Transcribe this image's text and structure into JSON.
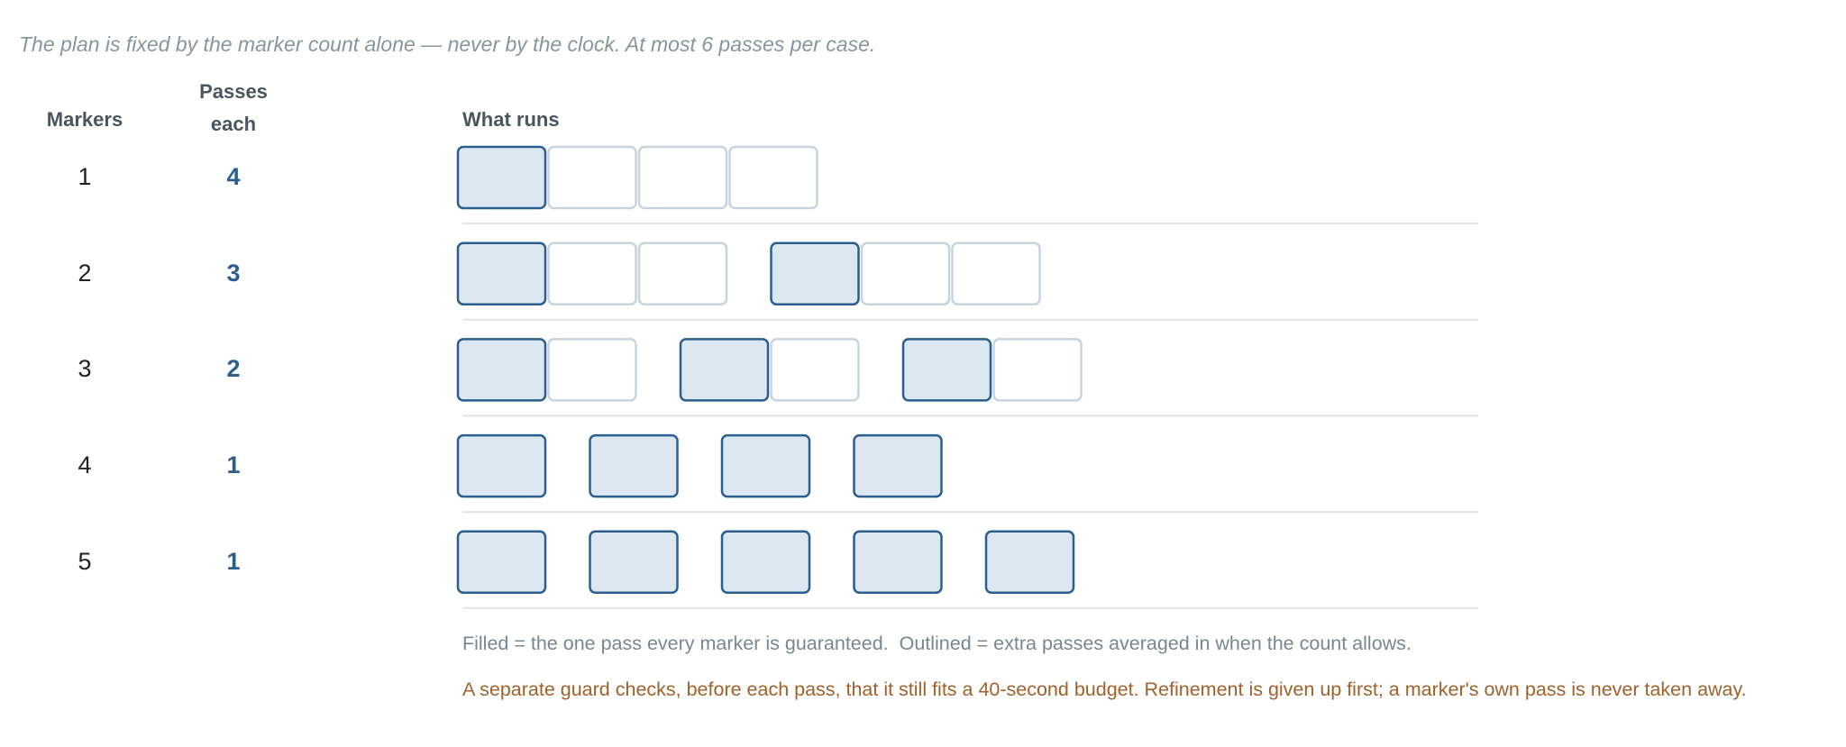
{
  "intro": "The plan is fixed by the marker count alone — never by the clock. At most 6 passes per case.",
  "headers": {
    "markers": "Markers",
    "passes": "Passes each",
    "runs": "What runs"
  },
  "rows": [
    {
      "markers": 1,
      "passes": 4
    },
    {
      "markers": 2,
      "passes": 3
    },
    {
      "markers": 3,
      "passes": 2
    },
    {
      "markers": 4,
      "passes": 1
    },
    {
      "markers": 5,
      "passes": 1
    }
  ],
  "legend": "Filled = the one pass every marker is guaranteed.  Outlined = extra passes averaged in when the count allows.",
  "guard": "A separate guard checks, before each pass, that it still fits a 40-second budget. Refinement is given up first; a marker's own pass is never taken away."
}
